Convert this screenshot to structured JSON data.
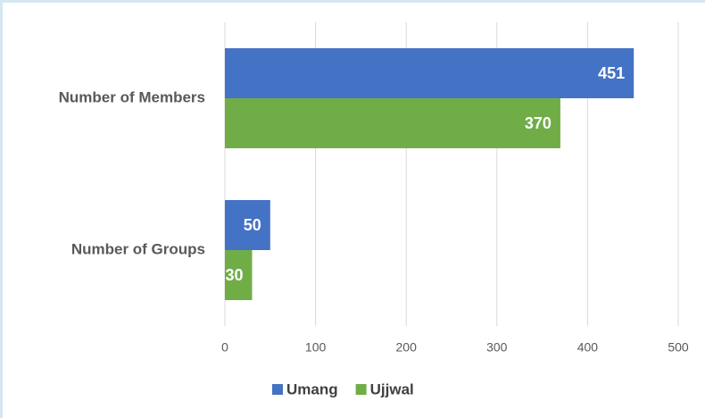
{
  "chart_data": {
    "type": "bar",
    "orientation": "horizontal",
    "categories": [
      "Number of Members",
      "Number of Groups"
    ],
    "series": [
      {
        "name": "Umang",
        "color": "#4472c4",
        "values": [
          451,
          50
        ]
      },
      {
        "name": "Ujjwal",
        "color": "#70ad47",
        "values": [
          370,
          30
        ]
      }
    ],
    "xlim": [
      0,
      500
    ],
    "xticks": [
      0,
      100,
      200,
      300,
      400,
      500
    ],
    "grid": true,
    "legend": "bottom"
  }
}
